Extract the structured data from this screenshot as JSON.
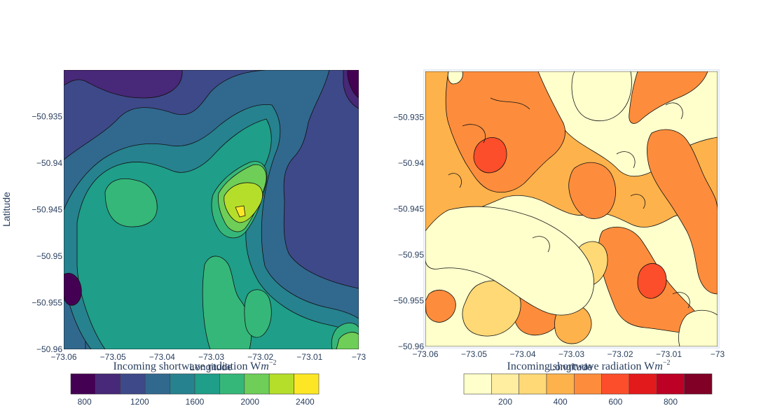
{
  "chart_data": [
    {
      "type": "contour",
      "panel": "left",
      "colorscale_name": "viridis",
      "xlabel": "Longitude",
      "ylabel": "Latitude",
      "xlim": [
        -73.06,
        -73.0
      ],
      "ylim": [
        -50.96,
        -50.93
      ],
      "x_ticks": [
        "−73.06",
        "−73.05",
        "−73.04",
        "−73.03",
        "−73.02",
        "−73.01",
        "−73"
      ],
      "y_ticks": [
        "−50.96",
        "−50.955",
        "−50.95",
        "−50.945",
        "−50.94",
        "−50.935"
      ],
      "x_tick_values": [
        -73.06,
        -73.05,
        -73.04,
        -73.03,
        -73.02,
        -73.01,
        -73.0
      ],
      "y_tick_values": [
        -50.96,
        -50.955,
        -50.95,
        -50.945,
        -50.94,
        -50.935
      ],
      "colorbar": {
        "title": "Incoming shortwave radiation Wm^-2",
        "title_text": "Incoming shortwave radiation W",
        "title_m": "m",
        "title_exp": "−2",
        "range": [
          700,
          2500
        ],
        "tick_labels": [
          "800",
          "1200",
          "1600",
          "2000",
          "2400"
        ],
        "tick_values": [
          800,
          1200,
          1600,
          2000,
          2400
        ],
        "colors": [
          "#440154",
          "#482878",
          "#3e4989",
          "#31688e",
          "#26828e",
          "#1f9e89",
          "#35b779",
          "#6ece58",
          "#b5de2b",
          "#fde725"
        ]
      }
    },
    {
      "type": "contour",
      "panel": "right",
      "colorscale_name": "YlOrRd",
      "xlabel": "Longitude",
      "ylabel": "",
      "xlim": [
        -73.06,
        -73.0
      ],
      "ylim": [
        -50.96,
        -50.93
      ],
      "x_ticks": [
        "−73.06",
        "−73.05",
        "−73.04",
        "−73.03",
        "−73.02",
        "−73.01",
        "−73"
      ],
      "y_ticks": [
        "−50.96",
        "−50.955",
        "−50.95",
        "−50.945",
        "−50.94",
        "−50.935"
      ],
      "x_tick_values": [
        -73.06,
        -73.05,
        -73.04,
        -73.03,
        -73.02,
        -73.01,
        -73.0
      ],
      "y_tick_values": [
        -50.96,
        -50.955,
        -50.95,
        -50.945,
        -50.94,
        -50.935
      ],
      "colorbar": {
        "title": "Incoming shortwave radiation Wm^-2",
        "title_text": "Incoming shortwave radiation W",
        "title_m": "m",
        "title_exp": "−2",
        "range": [
          50,
          950
        ],
        "tick_labels": [
          "200",
          "400",
          "600",
          "800"
        ],
        "tick_values": [
          200,
          400,
          600,
          800
        ],
        "colors": [
          "#ffffcc",
          "#ffeda0",
          "#fed976",
          "#feb24c",
          "#fd8d3c",
          "#fc4e2a",
          "#e31a1c",
          "#bd0026",
          "#800026"
        ]
      }
    }
  ]
}
